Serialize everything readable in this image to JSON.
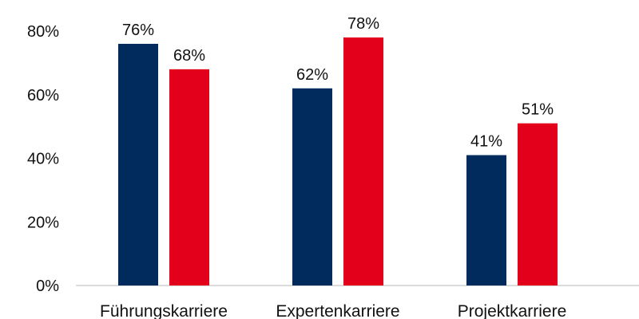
{
  "chart_data": {
    "type": "bar",
    "categories": [
      "Führungskarriere",
      "Expertenkarriere",
      "Projektkarriere"
    ],
    "series": [
      {
        "values": [
          76,
          62,
          41
        ],
        "color": "#002b5c"
      },
      {
        "values": [
          68,
          78,
          51
        ],
        "color": "#e2001a"
      }
    ],
    "data_labels": [
      [
        "76%",
        "62%",
        "41%"
      ],
      [
        "68%",
        "78%",
        "51%"
      ]
    ],
    "y_ticks": [
      0,
      20,
      40,
      60,
      80
    ],
    "y_tick_labels": [
      "0%",
      "20%",
      "40%",
      "60%",
      "80%"
    ],
    "ylim": [
      0,
      80
    ],
    "grid": false,
    "legend": "none",
    "title": "",
    "xlabel": "",
    "ylabel": ""
  }
}
